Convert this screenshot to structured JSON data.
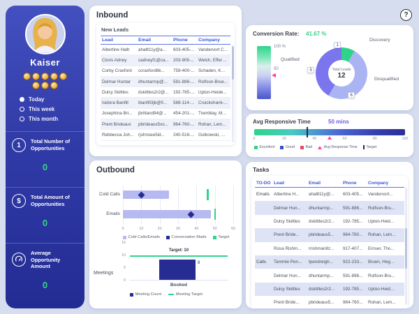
{
  "colors": {
    "page_bg": "#d6ddee",
    "sidebar_top": "#4350bf",
    "sidebar_bottom": "#232c93",
    "accent_green": "#2ed48a",
    "value_green": "#35d77e",
    "navy": "#262c92",
    "periwinkle": "#aab4f2",
    "purple": "#7b76ee",
    "light_purple_bar": "#b7baf1",
    "pink": "#ff3ea5",
    "red": "#e84a5f",
    "header_blue": "#3a57d6"
  },
  "help": {
    "label": "?"
  },
  "sidebar": {
    "user_name": "Kaiser",
    "team_avatar_count": 8,
    "filters": [
      {
        "label": "Today",
        "selected": true
      },
      {
        "label": "This week",
        "selected": false
      },
      {
        "label": "This month",
        "selected": false
      }
    ],
    "metrics": [
      {
        "icon": "number-one-icon",
        "glyph": "1",
        "label": "Total Number of Opportunities",
        "value": "0"
      },
      {
        "icon": "dollar-icon",
        "glyph": "$",
        "label": "Total Amount of Opportunities",
        "value": "0"
      },
      {
        "icon": "gauge-icon",
        "label": "Average Opportunity Amount",
        "value": "0"
      }
    ]
  },
  "inbound": {
    "title": "Inbound",
    "new_leads": {
      "title": "New Leads",
      "columns": [
        "Lead",
        "Email",
        "Phone",
        "Company"
      ],
      "rows": [
        [
          "Albertine Hallt",
          "ahallt11y@a...",
          "603-405-...",
          "Vandervort C..."
        ],
        [
          "Cloris Adney",
          "cadneyf1@ca...",
          "203-905-...",
          "Welch, Effertz..."
        ],
        [
          "Corby Craxford",
          "ccraxford6k...",
          "759-400-...",
          "Schaden, Kun..."
        ],
        [
          "Delmar Huntar",
          "dhuntarmp@...",
          "591-886-...",
          "Rolfson-Brue..."
        ],
        [
          "Dulcy Skittles",
          "dskittles2r2@...",
          "192-785-...",
          "Upton-Heide..."
        ],
        [
          "Isidora Banfill",
          "ibanfill3jb@fi...",
          "588-114-...",
          "Cruickshank-..."
        ],
        [
          "Josephina Bri...",
          "jbritland94@...",
          "454-201-...",
          "Tremblay, Mo..."
        ],
        [
          "Prent Brideaux",
          "pbrideaux5xo...",
          "964-760-...",
          "Rohan, Lem..."
        ],
        [
          "Rebbecca Joh...",
          "rjohnsee5id...",
          "240-516-...",
          "Gutkowski, Hi..."
        ]
      ]
    }
  },
  "conversion": {
    "label": "Conversion Rate:",
    "value": "41.67 %",
    "gauge": {
      "top_tick": "100 %",
      "mid_tick": "50"
    },
    "donut": {
      "center_label": "Total Leads",
      "center_value": "12",
      "segments": [
        {
          "label": "Discovery",
          "value": 1,
          "color": "#2ed48a"
        },
        {
          "label": "Disqualified",
          "value": 6,
          "color": "#aab4f2"
        },
        {
          "label": "Qualified",
          "value": 5,
          "color": "#7b76ee"
        }
      ]
    }
  },
  "avg_response": {
    "label": "Avg Responsive Time",
    "value": "50 mins",
    "scale": [
      0,
      20,
      40,
      60,
      80,
      100
    ],
    "marker": 50,
    "target": 35,
    "legend": [
      "Excellent",
      "Good",
      "Bad",
      "Avg Response Time",
      "Target"
    ]
  },
  "outbound": {
    "title": "Outbound",
    "calls_chart": {
      "type": "bar",
      "categories": [
        "Cold Calls",
        "Emails"
      ],
      "series": [
        {
          "name": "Cold Calls/Emails",
          "values": [
            25,
            48
          ],
          "color": "#b7baf1"
        },
        {
          "name": "Conversation Made",
          "values": [
            10,
            37
          ],
          "color": "#262c92"
        },
        {
          "name": "Target",
          "values": [
            46,
            50
          ],
          "color": "#2ed48a"
        }
      ],
      "xlim": [
        0,
        60
      ],
      "ticks": [
        0,
        10,
        20,
        30,
        40,
        50,
        60
      ]
    },
    "meetings_chart": {
      "type": "bar",
      "category_label": "Meetings",
      "x_category": "Booked",
      "value": 8,
      "target": 10,
      "target_label": "Target: 10",
      "ylim": [
        0,
        15
      ],
      "yticks": [
        0,
        5,
        10,
        15
      ],
      "legend": [
        "Meeting Count",
        "Meeting Target"
      ]
    }
  },
  "tasks": {
    "title": "Tasks",
    "columns": [
      "TO-DO",
      "Lead",
      "Email",
      "Phone",
      "Company"
    ],
    "rows": [
      {
        "group": "Emails",
        "lead": "Albertine H...",
        "email": "ahallt11y@...",
        "phone": "603-405...",
        "company": "Vandervort..."
      },
      {
        "group": "",
        "lead": "Delmar Hun...",
        "email": "dhuntarmp...",
        "phone": "591-886...",
        "company": "Rolfson-Bru..."
      },
      {
        "group": "",
        "lead": "Dulcy Skittles",
        "email": "dskittles2r2...",
        "phone": "192-785...",
        "company": "Upton-Heid..."
      },
      {
        "group": "",
        "lead": "Prent Bride...",
        "email": "pbrideaux5...",
        "phone": "964-760...",
        "company": "Rohan, Lem..."
      },
      {
        "group": "",
        "lead": "Rosa Rishm...",
        "email": "rrishman8z...",
        "phone": "917-407...",
        "company": "Ernser, Tho..."
      },
      {
        "group": "Calls",
        "lead": "Tammie Pen...",
        "email": "tpendreigh...",
        "phone": "922-233...",
        "company": "Bruen, Heg..."
      },
      {
        "group": "",
        "lead": "Delmar Hun...",
        "email": "dhuntarmp...",
        "phone": "591-886...",
        "company": "Rolfson-Bru..."
      },
      {
        "group": "",
        "lead": "Dulcy Skittles",
        "email": "dskittles2r2...",
        "phone": "192-785...",
        "company": "Upton-Heid..."
      },
      {
        "group": "",
        "lead": "Prent Bride...",
        "email": "pbrideaux5...",
        "phone": "964-760...",
        "company": "Rohan, Lem..."
      }
    ]
  },
  "chart_data": [
    {
      "type": "gauge",
      "title": "Conversion Rate",
      "value": 41.67,
      "unit": "%",
      "ticks": [
        "100 %",
        "50"
      ]
    },
    {
      "type": "pie",
      "title": "Total Leads",
      "center_value": 12,
      "labels": [
        "Discovery",
        "Disqualified",
        "Qualified"
      ],
      "values": [
        1,
        6,
        5
      ],
      "colors": [
        "#2ed48a",
        "#aab4f2",
        "#7b76ee"
      ]
    },
    {
      "type": "gauge",
      "title": "Avg Responsive Time",
      "value": 50,
      "unit": "mins",
      "xlim": [
        0,
        100
      ],
      "ticks": [
        0,
        20,
        40,
        60,
        80,
        100
      ],
      "target": 35,
      "legend": [
        "Excellent",
        "Good",
        "Bad",
        "Avg Response Time",
        "Target"
      ]
    },
    {
      "type": "bar",
      "orientation": "horizontal",
      "categories": [
        "Cold Calls",
        "Emails"
      ],
      "series": [
        {
          "name": "Cold Calls/Emails",
          "values": [
            25,
            48
          ]
        },
        {
          "name": "Conversation Made",
          "values": [
            10,
            37
          ]
        },
        {
          "name": "Target",
          "values": [
            46,
            50
          ]
        }
      ],
      "xlim": [
        0,
        60
      ],
      "ticks": [
        0,
        10,
        20,
        30,
        40,
        50,
        60
      ]
    },
    {
      "type": "bar",
      "title": "Meetings",
      "categories": [
        "Booked"
      ],
      "values": [
        8
      ],
      "target": 10,
      "target_label": "Target: 10",
      "ylim": [
        0,
        15
      ],
      "yticks": [
        0,
        5,
        10,
        15
      ],
      "legend": [
        "Meeting Count",
        "Meeting Target"
      ]
    }
  ]
}
